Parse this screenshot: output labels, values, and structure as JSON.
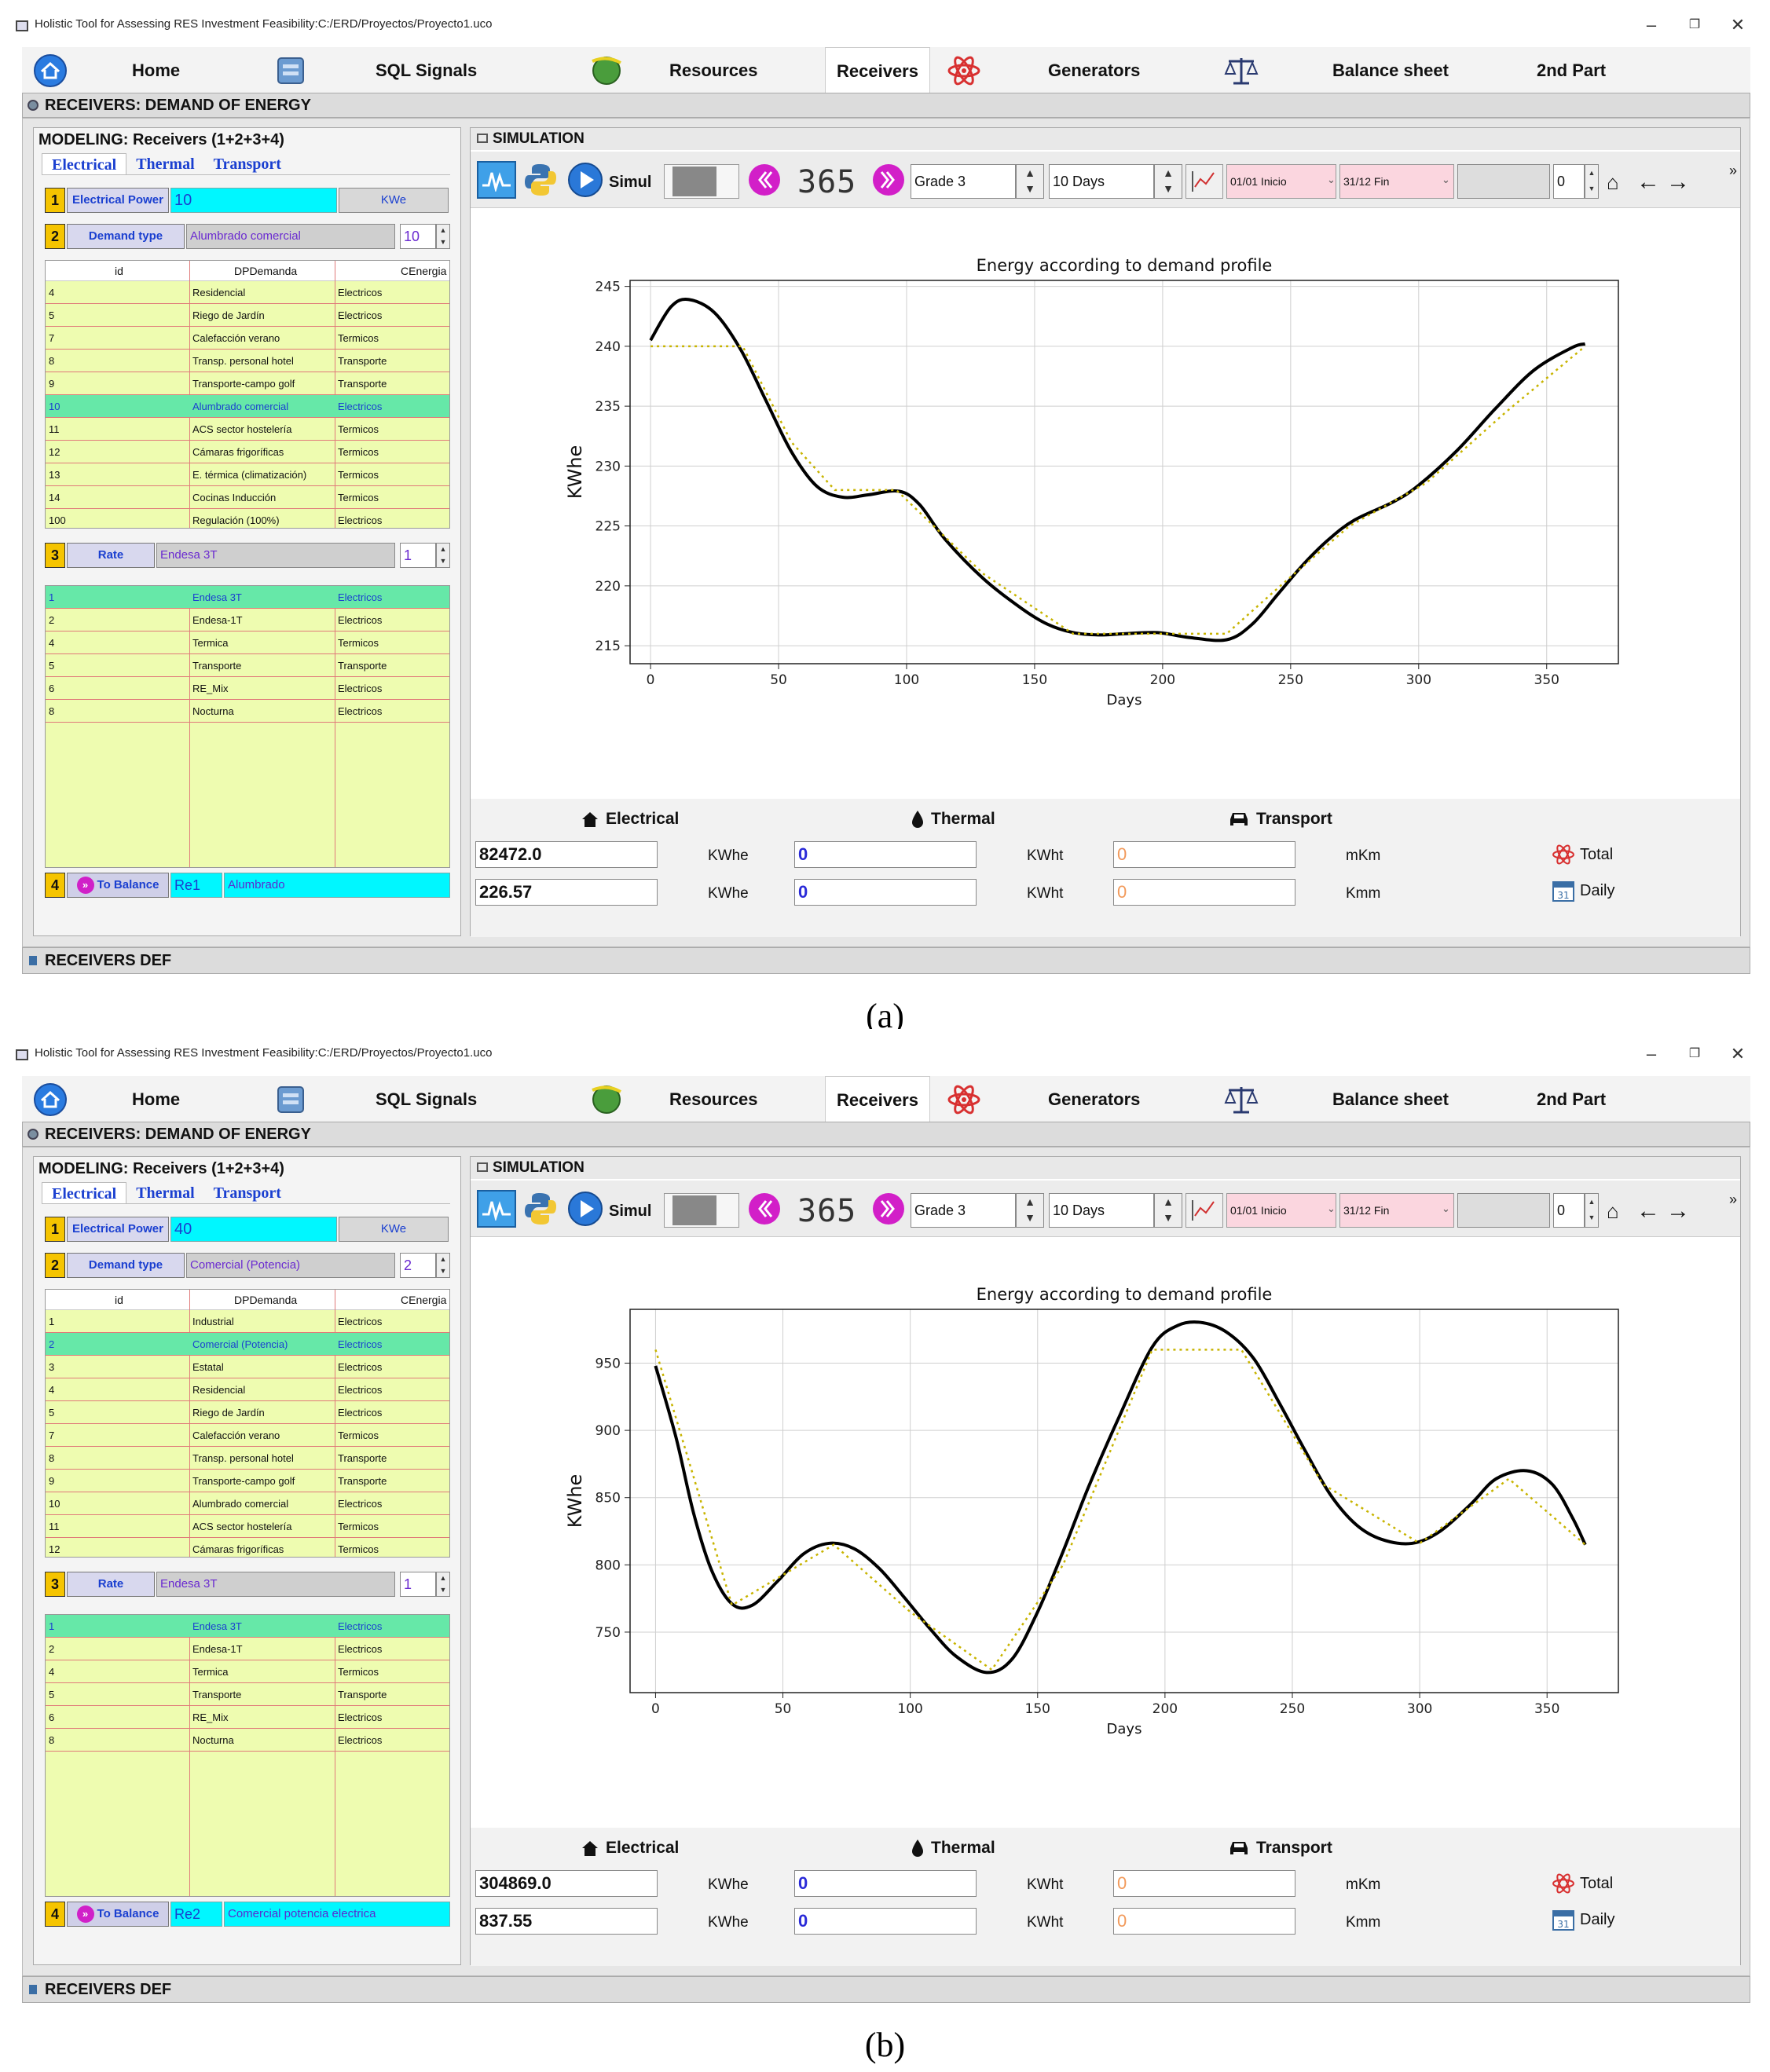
{
  "panels": [
    {
      "window_title": "Holistic Tool for Assessing RES Investment Feasibility:C:/ERD/Proyectos/Proyecto1.uco",
      "tabs": [
        "Home",
        "SQL Signals",
        "Resources",
        "Receivers",
        "Generators",
        "Balance sheet",
        "2nd Part"
      ],
      "active_tab": "Receivers",
      "section_title": "RECEIVERS: DEMAND OF ENERGY",
      "footer_title": "RECEIVERS DEF",
      "modeling_title": "MODELING: Receivers (1+2+3+4)",
      "subtabs": [
        "Electrical",
        "Thermal",
        "Transport"
      ],
      "row1": {
        "num": "1",
        "label": "Electrical Power",
        "value": "10",
        "unit": "KWe"
      },
      "row2": {
        "num": "2",
        "label": "Demand type",
        "value": "Alumbrado comercial",
        "spin": "10"
      },
      "demand_table": {
        "headers": [
          "id",
          "DPDemanda",
          "CEnergia"
        ],
        "rows": [
          [
            "4",
            "Residencial",
            "Electricos"
          ],
          [
            "5",
            "Riego de Jardín",
            "Electricos"
          ],
          [
            "7",
            "Calefacción verano",
            "Termicos"
          ],
          [
            "8",
            "Transp. personal hotel",
            "Transporte"
          ],
          [
            "9",
            "Transporte-campo golf",
            "Transporte"
          ],
          [
            "10",
            "Alumbrado comercial",
            "Electricos"
          ],
          [
            "11",
            "ACS sector hostelería",
            "Termicos"
          ],
          [
            "12",
            "Cámaras frigoríficas",
            "Termicos"
          ],
          [
            "13",
            "E. térmica (climatización)",
            "Termicos"
          ],
          [
            "14",
            "Cocinas Inducción",
            "Termicos"
          ],
          [
            "100",
            "Regulación (100%)",
            "Electricos"
          ]
        ],
        "selected": 5
      },
      "row3": {
        "num": "3",
        "label": "Rate",
        "value": "Endesa 3T",
        "spin": "1"
      },
      "rate_table": {
        "rows": [
          [
            "1",
            "Endesa 3T",
            "Electricos"
          ],
          [
            "2",
            "Endesa-1T",
            "Electricos"
          ],
          [
            "4",
            "Termica",
            "Termicos"
          ],
          [
            "5",
            "Transporte",
            "Transporte"
          ],
          [
            "6",
            "RE_Mix",
            "Electricos"
          ],
          [
            "8",
            "Nocturna",
            "Electricos"
          ]
        ],
        "selected": 0
      },
      "row4": {
        "num": "4",
        "label": "To Balance",
        "code": "Re1",
        "name": "Alumbrado"
      },
      "sim_title": "SIMULATION",
      "toolbar": {
        "simul": "Simul",
        "counter": "365",
        "grade": "Grade 3",
        "period": "10 Days",
        "start": "01/01 Inicio",
        "end": "31/12  Fin",
        "index": "0"
      },
      "bottom": {
        "headers": [
          "Electrical",
          "Thermal",
          "Transport"
        ],
        "total": {
          "elec": "82472.0",
          "elec_unit": "KWhe",
          "therm": "0",
          "therm_unit": "KWht",
          "trans": "0",
          "trans_unit": "mKm",
          "label": "Total"
        },
        "daily": {
          "elec": "226.57",
          "elec_unit": "KWhe",
          "therm": "0",
          "therm_unit": "KWht",
          "trans": "0",
          "trans_unit": "Kmm",
          "label": "Daily"
        }
      },
      "sublabel": "(a)"
    },
    {
      "window_title": "Holistic Tool for Assessing RES Investment Feasibility:C:/ERD/Proyectos/Proyecto1.uco",
      "tabs": [
        "Home",
        "SQL Signals",
        "Resources",
        "Receivers",
        "Generators",
        "Balance sheet",
        "2nd Part"
      ],
      "active_tab": "Receivers",
      "section_title": "RECEIVERS: DEMAND OF ENERGY",
      "footer_title": "RECEIVERS DEF",
      "modeling_title": "MODELING: Receivers (1+2+3+4)",
      "subtabs": [
        "Electrical",
        "Thermal",
        "Transport"
      ],
      "row1": {
        "num": "1",
        "label": "Electrical Power",
        "value": "40",
        "unit": "KWe"
      },
      "row2": {
        "num": "2",
        "label": "Demand type",
        "value": "Comercial (Potencia)",
        "spin": "2"
      },
      "demand_table": {
        "headers": [
          "id",
          "DPDemanda",
          "CEnergia"
        ],
        "rows": [
          [
            "1",
            "Industrial",
            "Electricos"
          ],
          [
            "2",
            "Comercial (Potencia)",
            "Electricos"
          ],
          [
            "3",
            "Estatal",
            "Electricos"
          ],
          [
            "4",
            "Residencial",
            "Electricos"
          ],
          [
            "5",
            "Riego de Jardín",
            "Electricos"
          ],
          [
            "7",
            "Calefacción verano",
            "Termicos"
          ],
          [
            "8",
            "Transp. personal hotel",
            "Transporte"
          ],
          [
            "9",
            "Transporte-campo golf",
            "Transporte"
          ],
          [
            "10",
            "Alumbrado comercial",
            "Electricos"
          ],
          [
            "11",
            "ACS sector hostelería",
            "Termicos"
          ],
          [
            "12",
            "Cámaras frigoríficas",
            "Termicos"
          ]
        ],
        "selected": 1
      },
      "row3": {
        "num": "3",
        "label": "Rate",
        "value": "Endesa 3T",
        "spin": "1"
      },
      "rate_table": {
        "rows": [
          [
            "1",
            "Endesa 3T",
            "Electricos"
          ],
          [
            "2",
            "Endesa-1T",
            "Electricos"
          ],
          [
            "4",
            "Termica",
            "Termicos"
          ],
          [
            "5",
            "Transporte",
            "Transporte"
          ],
          [
            "6",
            "RE_Mix",
            "Electricos"
          ],
          [
            "8",
            "Nocturna",
            "Electricos"
          ]
        ],
        "selected": 0
      },
      "row4": {
        "num": "4",
        "label": "To Balance",
        "code": "Re2",
        "name": "Comercial potencia electrica"
      },
      "sim_title": "SIMULATION",
      "toolbar": {
        "simul": "Simul",
        "counter": "365",
        "grade": "Grade 3",
        "period": "10 Days",
        "start": "01/01 Inicio",
        "end": "31/12  Fin",
        "index": "0"
      },
      "bottom": {
        "headers": [
          "Electrical",
          "Thermal",
          "Transport"
        ],
        "total": {
          "elec": "304869.0",
          "elec_unit": "KWhe",
          "therm": "0",
          "therm_unit": "KWht",
          "trans": "0",
          "trans_unit": "mKm",
          "label": "Total"
        },
        "daily": {
          "elec": "837.55",
          "elec_unit": "KWhe",
          "therm": "0",
          "therm_unit": "KWht",
          "trans": "0",
          "trans_unit": "Kmm",
          "label": "Daily"
        }
      },
      "sublabel": "(b)"
    }
  ],
  "chart_data": [
    {
      "type": "line",
      "title": "Energy according to demand profile",
      "xlabel": "Days",
      "ylabel": "KWhe",
      "xlim": [
        -8,
        378
      ],
      "ylim": [
        213.5,
        245.5
      ],
      "xticks": [
        0,
        50,
        100,
        150,
        200,
        250,
        300,
        350
      ],
      "yticks": [
        215,
        220,
        225,
        230,
        235,
        240,
        245
      ],
      "grid": true,
      "series": [
        {
          "style": "solid-black",
          "x": [
            0,
            8,
            15,
            25,
            35,
            45,
            55,
            65,
            75,
            85,
            97,
            105,
            115,
            130,
            145,
            155,
            165,
            175,
            185,
            198,
            210,
            225,
            235,
            245,
            255,
            265,
            275,
            290,
            300,
            315,
            330,
            345,
            360,
            365
          ],
          "y": [
            240.5,
            243.3,
            243.9,
            242.8,
            239.8,
            235.5,
            231.2,
            228.3,
            227.4,
            227.6,
            227.9,
            226.8,
            223.9,
            220.6,
            218.1,
            216.8,
            216.1,
            215.9,
            216.0,
            216.1,
            215.7,
            215.5,
            216.8,
            219.3,
            221.8,
            223.9,
            225.5,
            227.0,
            228.4,
            231.3,
            234.8,
            238.0,
            239.9,
            240.2
          ]
        },
        {
          "style": "dotted-olive",
          "x": [
            0,
            36,
            55,
            72,
            96,
            130,
            165,
            225,
            246,
            273,
            303,
            334,
            365
          ],
          "y": [
            240.0,
            240.0,
            232.0,
            228.0,
            228.0,
            221.0,
            216.0,
            216.0,
            220.0,
            225.0,
            228.6,
            234.5,
            240.0
          ]
        }
      ]
    },
    {
      "type": "line",
      "title": "Energy according to demand profile",
      "xlabel": "Days",
      "ylabel": "KWhe",
      "xlim": [
        -10,
        378
      ],
      "ylim": [
        705,
        990
      ],
      "xticks": [
        0,
        50,
        100,
        150,
        200,
        250,
        300,
        350
      ],
      "yticks": [
        750,
        800,
        850,
        900,
        950
      ],
      "grid": true,
      "series": [
        {
          "style": "solid-black",
          "x": [
            0,
            8,
            15,
            22,
            30,
            38,
            48,
            58,
            68,
            78,
            88,
            98,
            108,
            118,
            130,
            140,
            150,
            160,
            170,
            182,
            195,
            205,
            215,
            225,
            235,
            245,
            255,
            265,
            275,
            285,
            297,
            308,
            320,
            330,
            342,
            352,
            360,
            365
          ],
          "y": [
            948,
            895,
            838,
            796,
            771,
            770,
            788,
            808,
            816,
            812,
            797,
            775,
            752,
            732,
            720,
            730,
            765,
            810,
            858,
            910,
            962,
            978,
            980,
            972,
            953,
            920,
            885,
            852,
            830,
            819,
            816,
            825,
            845,
            864,
            870,
            860,
            835,
            815
          ]
        },
        {
          "style": "dotted-olive",
          "x": [
            0,
            30,
            70,
            100,
            132,
            160,
            195,
            230,
            262,
            300,
            335,
            365
          ],
          "y": [
            960,
            770,
            815,
            765,
            722,
            800,
            960,
            960,
            860,
            816,
            864,
            815
          ]
        }
      ]
    }
  ]
}
